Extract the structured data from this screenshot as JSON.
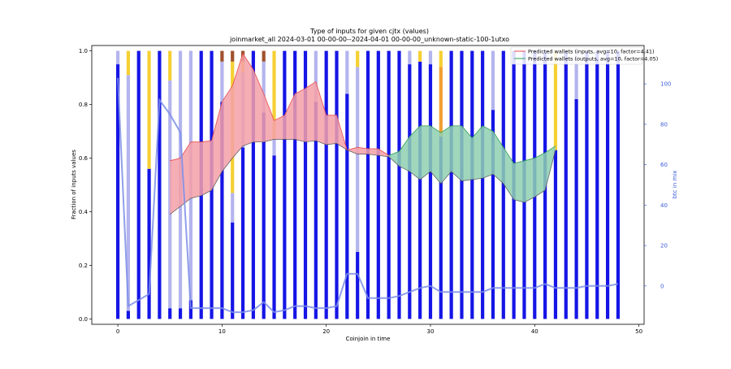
{
  "chart_data": {
    "type": "bar",
    "title": "Type of inputs for given cjtx (values)",
    "subtitle": "joinmarket_all 2024-03-01 00-00-00--2024-04-01 00-00-00_unknown-static-100-1utxo",
    "xlabel": "Coinjoin in time",
    "ylabel": "Fraction of inputs values",
    "y2label": "btc in mix",
    "xlim": [
      -2.5,
      50.5
    ],
    "ylim": [
      -0.02,
      1.02
    ],
    "y2lim": [
      -19,
      119
    ],
    "xticks": [
      0,
      10,
      20,
      30,
      40,
      50
    ],
    "yticks": [
      0.0,
      0.2,
      0.4,
      0.6,
      0.8,
      1.0
    ],
    "y2ticks": [
      0,
      20,
      40,
      60,
      80,
      100
    ],
    "legend_position": "top-right",
    "legend": [
      {
        "label": "Predicted wallets (inputs, avg=10, factor=4.41)",
        "color": "#e74c4c"
      },
      {
        "label": "Predicted wallets (outputs, avg=10, factor=4.05)",
        "color": "#2e9e4e"
      }
    ],
    "colors": {
      "fresh": "#1515e6",
      "remixed": "#b4b4ee",
      "yellow": "#f5d033",
      "orange": "#f0a030",
      "brown": "#a0522d",
      "btc_line": "#7b8ee8",
      "inputs_fill": "#f5a0a8",
      "outputs_fill": "#8fd0b0"
    },
    "x": [
      0,
      1,
      2,
      3,
      4,
      5,
      6,
      7,
      8,
      9,
      10,
      11,
      12,
      13,
      14,
      15,
      16,
      17,
      18,
      19,
      20,
      21,
      22,
      23,
      24,
      25,
      26,
      27,
      28,
      29,
      30,
      31,
      32,
      33,
      34,
      35,
      36,
      37,
      38,
      39,
      40,
      41,
      42,
      43,
      44,
      45,
      46,
      47,
      48
    ],
    "stacks": [
      [
        [
          "fresh",
          0.95
        ],
        [
          "remixed",
          0.05
        ]
      ],
      [
        [
          "fresh",
          0.03
        ],
        [
          "remixed",
          0.88
        ],
        [
          "yellow",
          0.09
        ]
      ],
      [
        [
          "fresh",
          1.0
        ]
      ],
      [
        [
          "fresh",
          0.56
        ],
        [
          "yellow",
          0.44
        ]
      ],
      [
        [
          "fresh",
          1.0
        ]
      ],
      [
        [
          "fresh",
          0.04
        ],
        [
          "remixed",
          0.85
        ],
        [
          "yellow",
          0.11
        ]
      ],
      [
        [
          "fresh",
          0.04
        ],
        [
          "remixed",
          0.96
        ]
      ],
      [
        [
          "fresh",
          0.07
        ],
        [
          "remixed",
          0.93
        ]
      ],
      [
        [
          "fresh",
          1.0
        ]
      ],
      [
        [
          "fresh",
          1.0
        ]
      ],
      [
        [
          "fresh",
          0.81
        ],
        [
          "remixed",
          0.15
        ],
        [
          "brown",
          0.04
        ]
      ],
      [
        [
          "fresh",
          0.36
        ],
        [
          "remixed",
          0.11
        ],
        [
          "yellow",
          0.49
        ],
        [
          "brown",
          0.04
        ]
      ],
      [
        [
          "fresh",
          0.64
        ],
        [
          "remixed",
          0.28
        ],
        [
          "yellow",
          0.04
        ],
        [
          "brown",
          0.04
        ]
      ],
      [
        [
          "fresh",
          1.0
        ]
      ],
      [
        [
          "fresh",
          0.77
        ],
        [
          "remixed",
          0.19
        ],
        [
          "brown",
          0.04
        ]
      ],
      [
        [
          "fresh",
          0.61
        ],
        [
          "remixed",
          0.06
        ],
        [
          "yellow",
          0.33
        ]
      ],
      [
        [
          "fresh",
          1.0
        ]
      ],
      [
        [
          "fresh",
          1.0
        ]
      ],
      [
        [
          "fresh",
          1.0
        ]
      ],
      [
        [
          "fresh",
          0.81
        ],
        [
          "remixed",
          0.19
        ]
      ],
      [
        [
          "fresh",
          1.0
        ]
      ],
      [
        [
          "fresh",
          1.0
        ]
      ],
      [
        [
          "fresh",
          0.84
        ],
        [
          "remixed",
          0.16
        ]
      ],
      [
        [
          "fresh",
          0.25
        ],
        [
          "remixed",
          0.69
        ],
        [
          "yellow",
          0.06
        ]
      ],
      [
        [
          "fresh",
          1.0
        ]
      ],
      [
        [
          "fresh",
          1.0
        ]
      ],
      [
        [
          "fresh",
          1.0
        ]
      ],
      [
        [
          "fresh",
          1.0
        ]
      ],
      [
        [
          "fresh",
          0.95
        ],
        [
          "remixed",
          0.05
        ]
      ],
      [
        [
          "fresh",
          0.96
        ],
        [
          "yellow",
          0.04
        ]
      ],
      [
        [
          "fresh",
          0.95
        ],
        [
          "remixed",
          0.05
        ]
      ],
      [
        [
          "fresh",
          0.68
        ],
        [
          "orange",
          0.26
        ],
        [
          "yellow",
          0.06
        ]
      ],
      [
        [
          "fresh",
          1.0
        ]
      ],
      [
        [
          "fresh",
          1.0
        ]
      ],
      [
        [
          "fresh",
          1.0
        ]
      ],
      [
        [
          "fresh",
          1.0
        ]
      ],
      [
        [
          "fresh",
          0.78
        ],
        [
          "remixed",
          0.22
        ]
      ],
      [
        [
          "fresh",
          1.0
        ]
      ],
      [
        [
          "fresh",
          1.0
        ]
      ],
      [
        [
          "fresh",
          1.0
        ]
      ],
      [
        [
          "fresh",
          1.0
        ]
      ],
      [
        [
          "fresh",
          1.0
        ]
      ],
      [
        [
          "fresh",
          0.63
        ],
        [
          "yellow",
          0.37
        ]
      ],
      [
        [
          "fresh",
          1.0
        ]
      ],
      [
        [
          "fresh",
          0.82
        ],
        [
          "remixed",
          0.18
        ]
      ],
      [
        [
          "fresh",
          1.0
        ]
      ],
      [
        [
          "fresh",
          1.0
        ]
      ],
      [
        [
          "fresh",
          1.0
        ]
      ],
      [
        [
          "fresh",
          1.0
        ]
      ]
    ],
    "btc_in_mix": [
      103,
      -10,
      -7,
      -4,
      92,
      85,
      76,
      -11,
      -11,
      -11,
      -11,
      -13,
      -13,
      -12,
      -8,
      -13,
      -12,
      -10,
      -10,
      -11,
      -11,
      -10,
      6,
      6,
      -6,
      -6,
      -6,
      -5,
      -3,
      -1,
      0,
      -3,
      -3,
      -3,
      -3,
      -3,
      -1,
      -1,
      -1,
      -1,
      -1,
      1,
      -1,
      -1,
      -1,
      0,
      0,
      0,
      1
    ],
    "inputs_band": {
      "x": [
        5,
        6,
        7,
        8,
        9,
        10,
        11,
        12,
        13,
        14,
        15,
        16,
        17,
        18,
        19,
        20,
        21,
        22,
        23,
        24,
        25,
        26
      ],
      "upper": [
        0.59,
        0.6,
        0.66,
        0.66,
        0.665,
        0.81,
        0.87,
        0.99,
        0.93,
        0.84,
        0.74,
        0.76,
        0.84,
        0.86,
        0.885,
        0.76,
        0.76,
        0.63,
        0.64,
        0.635,
        0.635,
        0.61
      ],
      "lower": [
        0.39,
        0.42,
        0.45,
        0.46,
        0.48,
        0.55,
        0.6,
        0.645,
        0.66,
        0.66,
        0.67,
        0.67,
        0.67,
        0.66,
        0.665,
        0.65,
        0.655,
        0.63,
        0.615,
        0.615,
        0.61,
        0.605
      ]
    },
    "outputs_band": {
      "x": [
        26,
        27,
        28,
        29,
        30,
        31,
        32,
        33,
        34,
        35,
        36,
        37,
        38,
        39,
        40,
        41,
        42
      ],
      "upper": [
        0.61,
        0.625,
        0.68,
        0.72,
        0.72,
        0.695,
        0.72,
        0.72,
        0.675,
        0.72,
        0.7,
        0.64,
        0.58,
        0.59,
        0.6,
        0.62,
        0.645
      ],
      "lower": [
        0.605,
        0.57,
        0.55,
        0.52,
        0.55,
        0.505,
        0.55,
        0.515,
        0.52,
        0.525,
        0.54,
        0.505,
        0.445,
        0.435,
        0.455,
        0.48,
        0.63
      ]
    }
  }
}
